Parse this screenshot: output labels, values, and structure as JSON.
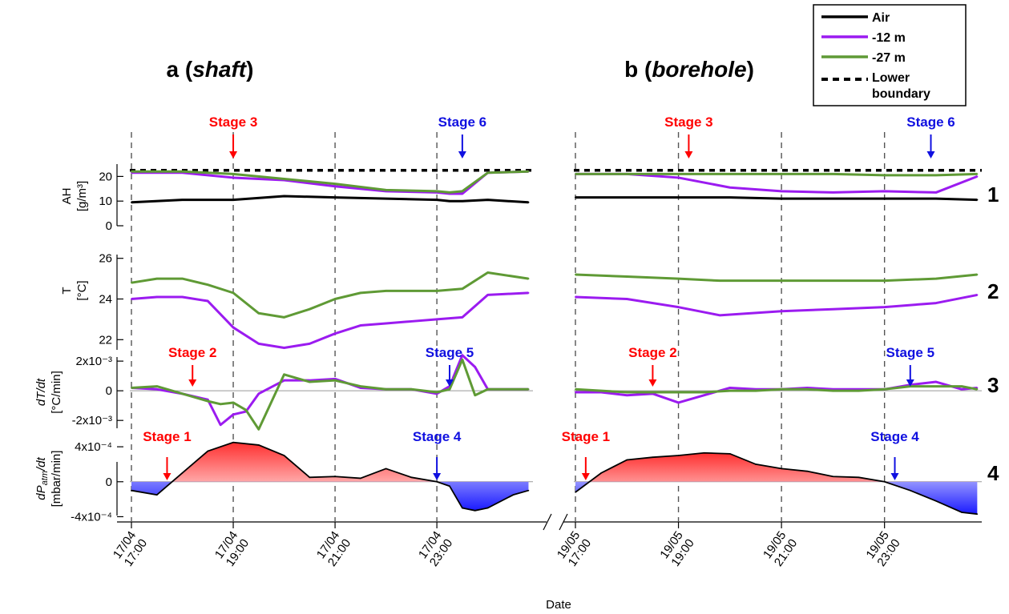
{
  "colors": {
    "air": "#000000",
    "m12": "#9b1bf0",
    "m27": "#5f9a35",
    "stage_red": "#ff0000",
    "stage_blue": "#1010e0",
    "area_positive": "#ff3030",
    "area_negative": "#1a1aff"
  },
  "legend": {
    "placement": "top-right",
    "entries": [
      {
        "label": "Air",
        "style": "solid",
        "color": "#000000"
      },
      {
        "label": "-12 m",
        "style": "solid",
        "color": "#9b1bf0"
      },
      {
        "label": "-27 m",
        "style": "solid",
        "color": "#5f9a35"
      },
      {
        "label": "Lower",
        "label2": "boundary",
        "style": "dashed",
        "color": "#000000"
      }
    ]
  },
  "panels": [
    {
      "title_prefix": "a (",
      "title_em": "shaft",
      "title_suffix": ")",
      "x_ticks": [
        {
          "date": "17/04",
          "time": "17:00"
        },
        {
          "date": "17/04",
          "time": "19:00"
        },
        {
          "date": "17/04",
          "time": "21:00"
        },
        {
          "date": "17/04",
          "time": "23:00"
        }
      ],
      "stages": [
        {
          "label": "Stage 3",
          "row": 0,
          "t": 2.0,
          "color": "red"
        },
        {
          "label": "Stage 6",
          "row": 0,
          "t": 6.5,
          "color": "blue"
        },
        {
          "label": "Stage 2",
          "row": 2,
          "t": 1.2,
          "color": "red"
        },
        {
          "label": "Stage 5",
          "row": 2,
          "t": 6.25,
          "color": "blue"
        },
        {
          "label": "Stage 1",
          "row": 3,
          "t": 0.7,
          "color": "red"
        },
        {
          "label": "Stage 4",
          "row": 3,
          "t": 6.0,
          "color": "blue"
        }
      ]
    },
    {
      "title_prefix": "b (",
      "title_em": "borehole",
      "title_suffix": ")",
      "x_ticks": [
        {
          "date": "19/05",
          "time": "17:00"
        },
        {
          "date": "19/05",
          "time": "19:00"
        },
        {
          "date": "19/05",
          "time": "21:00"
        },
        {
          "date": "19/05",
          "time": "23:00"
        }
      ],
      "stages": [
        {
          "label": "Stage 3",
          "row": 0,
          "t": 2.2,
          "color": "red"
        },
        {
          "label": "Stage 6",
          "row": 0,
          "t": 6.9,
          "color": "blue"
        },
        {
          "label": "Stage 2",
          "row": 2,
          "t": 1.5,
          "color": "red"
        },
        {
          "label": "Stage 5",
          "row": 2,
          "t": 6.5,
          "color": "blue"
        },
        {
          "label": "Stage 1",
          "row": 3,
          "t": 0.2,
          "color": "red"
        },
        {
          "label": "Stage 4",
          "row": 3,
          "t": 6.2,
          "color": "blue"
        }
      ]
    }
  ],
  "rows": [
    {
      "number": "1",
      "ylabel1": "AH",
      "ylabel2": "[g/m³]",
      "yticks": [
        {
          "v": 0,
          "label": "0"
        },
        {
          "v": 10,
          "label": "10"
        },
        {
          "v": 20,
          "label": "20"
        }
      ]
    },
    {
      "number": "2",
      "ylabel1": "T",
      "ylabel2": "[°C]",
      "yticks": [
        {
          "v": 22,
          "label": "22"
        },
        {
          "v": 24,
          "label": "24"
        },
        {
          "v": 26,
          "label": "26"
        }
      ]
    },
    {
      "number": "3",
      "ylabel1": "dT/dt",
      "ylabel2": "[°C/min]",
      "yticks": [
        {
          "v": -0.002,
          "label": "-2x10⁻³"
        },
        {
          "v": 0,
          "label": "0"
        },
        {
          "v": 0.002,
          "label": "2x10⁻³"
        }
      ]
    },
    {
      "number": "4",
      "ylabel1": "dPatm/dt",
      "ylabel2": "[mbar/min]",
      "yticks": [
        {
          "v": -0.0004,
          "label": "-4x10⁻⁴"
        },
        {
          "v": 0,
          "label": "0"
        },
        {
          "v": 0.0004,
          "label": "4x10⁻⁴"
        }
      ]
    }
  ],
  "xlabel": "Date",
  "chart_data": [
    {
      "type": "line",
      "panel": "a (shaft)",
      "row": "1",
      "ylabel": "AH [g/m³]",
      "ylim": [
        0,
        25
      ],
      "x_hours_from_17_00": [
        0,
        1,
        2,
        3,
        4,
        5,
        6,
        6.25,
        6.5,
        7,
        7.8
      ],
      "lower_boundary": 22.5,
      "series": [
        {
          "name": "Air",
          "values": [
            9.5,
            10.5,
            10.5,
            12,
            11.5,
            11,
            10.5,
            10,
            10,
            10.5,
            9.5
          ]
        },
        {
          "name": "-12 m",
          "values": [
            21.5,
            21.5,
            19.5,
            18.5,
            16,
            14,
            13.5,
            13,
            13,
            21.5,
            22
          ]
        },
        {
          "name": "-27 m",
          "values": [
            22,
            22,
            21,
            19,
            17,
            14.5,
            14,
            13.5,
            14,
            21.5,
            22
          ]
        }
      ]
    },
    {
      "type": "line",
      "panel": "a (shaft)",
      "row": "2",
      "ylabel": "T [°C]",
      "ylim": [
        21.5,
        26.5
      ],
      "x_hours_from_17_00": [
        0,
        0.5,
        1,
        1.5,
        2,
        2.5,
        3,
        3.5,
        4,
        4.5,
        5,
        5.5,
        6,
        6.5,
        7,
        7.8
      ],
      "series": [
        {
          "name": "-12 m",
          "values": [
            24,
            24.1,
            24.1,
            23.9,
            22.6,
            21.8,
            21.6,
            21.8,
            22.3,
            22.7,
            22.8,
            22.9,
            23,
            23.1,
            24.2,
            24.3
          ]
        },
        {
          "name": "-27 m",
          "values": [
            24.8,
            25,
            25,
            24.7,
            24.3,
            23.3,
            23.1,
            23.5,
            24,
            24.3,
            24.4,
            24.4,
            24.4,
            24.5,
            25.3,
            25
          ]
        }
      ]
    },
    {
      "type": "line",
      "panel": "a (shaft)",
      "row": "3",
      "ylabel": "dT/dt [°C/min]",
      "ylim": [
        -0.0028,
        0.0026
      ],
      "x_hours_from_17_00": [
        0,
        0.5,
        1,
        1.5,
        1.75,
        2,
        2.25,
        2.5,
        3,
        3.5,
        4,
        4.5,
        5,
        5.5,
        6,
        6.25,
        6.5,
        6.75,
        7,
        7.8
      ],
      "series": [
        {
          "name": "-12 m",
          "values": [
            0.0002,
            0.0001,
            -0.0002,
            -0.0006,
            -0.0023,
            -0.0016,
            -0.0014,
            -0.0002,
            0.0007,
            0.0007,
            0.0008,
            0.0002,
            0.0001,
            0.0001,
            -0.0002,
            0.0003,
            0.0024,
            0.0016,
            0.0001,
            0.0001
          ]
        },
        {
          "name": "-27 m",
          "values": [
            0.0002,
            0.0003,
            -0.0002,
            -0.0007,
            -0.0009,
            -0.0008,
            -0.0013,
            -0.0026,
            0.0011,
            0.0006,
            0.0007,
            0.0003,
            0.0001,
            0.0001,
            -0.0001,
            0.0001,
            0.0021,
            -0.0003,
            0.0001,
            0.0001
          ]
        }
      ]
    },
    {
      "type": "area",
      "panel": "a (shaft)",
      "row": "4",
      "ylabel": "dPatm/dt [mbar/min]",
      "ylim": [
        -0.00046,
        0.00052
      ],
      "x_hours_from_17_00": [
        0,
        0.5,
        1,
        1.5,
        2,
        2.5,
        3,
        3.5,
        4,
        4.5,
        5,
        5.5,
        6,
        6.25,
        6.5,
        6.75,
        7,
        7.5,
        7.8
      ],
      "series": [
        {
          "name": "",
          "values": [
            -0.0001,
            -0.00015,
            0.0001,
            0.00035,
            0.00045,
            0.00042,
            0.0003,
            5e-05,
            6e-05,
            4e-05,
            0.00015,
            5e-05,
            0.0,
            -5e-05,
            -0.0003,
            -0.00033,
            -0.0003,
            -0.00015,
            -0.0001
          ]
        }
      ]
    },
    {
      "type": "line",
      "panel": "b (borehole)",
      "row": "1",
      "ylabel": "AH [g/m³]",
      "ylim": [
        0,
        25
      ],
      "x_hours_from_17_00": [
        0,
        1,
        2,
        3,
        4,
        5,
        6,
        7,
        7.8
      ],
      "lower_boundary": 22.5,
      "series": [
        {
          "name": "Air",
          "values": [
            11.5,
            11.5,
            11.5,
            11.5,
            11,
            11,
            11,
            11,
            10.5
          ]
        },
        {
          "name": "-12 m",
          "values": [
            21,
            21,
            19.5,
            15.5,
            14,
            13.5,
            14,
            13.5,
            20
          ]
        },
        {
          "name": "-27 m",
          "values": [
            21,
            21,
            21,
            21,
            21,
            21,
            20.5,
            20.5,
            21
          ]
        }
      ]
    },
    {
      "type": "line",
      "panel": "b (borehole)",
      "row": "2",
      "ylabel": "T [°C]",
      "ylim": [
        21.5,
        26.5
      ],
      "x_hours_from_17_00": [
        0,
        1,
        2,
        2.8,
        4,
        5,
        6,
        7,
        7.8
      ],
      "series": [
        {
          "name": "-12 m",
          "values": [
            24.1,
            24,
            23.6,
            23.2,
            23.4,
            23.5,
            23.6,
            23.8,
            24.2
          ]
        },
        {
          "name": "-27 m",
          "values": [
            25.2,
            25.1,
            25,
            24.9,
            24.9,
            24.9,
            24.9,
            25,
            25.2
          ]
        }
      ]
    },
    {
      "type": "line",
      "panel": "b (borehole)",
      "row": "3",
      "ylabel": "dT/dt [°C/min]",
      "ylim": [
        -0.0028,
        0.0026
      ],
      "x_hours_from_17_00": [
        0,
        0.5,
        1,
        1.5,
        2,
        2.5,
        3,
        3.5,
        4,
        4.5,
        5,
        5.5,
        6,
        6.5,
        7,
        7.5,
        7.8
      ],
      "series": [
        {
          "name": "-12 m",
          "values": [
            -0.0001,
            -0.0001,
            -0.0003,
            -0.0002,
            -0.0008,
            -0.0003,
            0.0002,
            0.0001,
            0.0001,
            0.0002,
            0.0001,
            0.0001,
            0.0001,
            0.0004,
            0.0006,
            0.0001,
            0.0002
          ]
        },
        {
          "name": "-27 m",
          "values": [
            0.0001,
            0.0,
            -0.0001,
            -0.0001,
            -0.0001,
            -0.0001,
            0.0,
            0.0,
            0.0001,
            0.0001,
            0.0,
            0.0,
            0.0001,
            0.0003,
            0.0003,
            0.0003,
            0.0001
          ]
        }
      ]
    },
    {
      "type": "area",
      "panel": "b (borehole)",
      "row": "4",
      "ylabel": "dPatm/dt [mbar/min]",
      "ylim": [
        -0.00046,
        0.00052
      ],
      "x_hours_from_17_00": [
        0,
        0.5,
        1,
        1.5,
        2,
        2.5,
        3,
        3.5,
        4,
        4.5,
        5,
        5.5,
        6,
        6.5,
        7,
        7.5,
        7.8
      ],
      "series": [
        {
          "name": "",
          "values": [
            -0.00012,
            0.0001,
            0.00025,
            0.00028,
            0.0003,
            0.00033,
            0.00032,
            0.0002,
            0.00015,
            0.00012,
            6e-05,
            5e-05,
            0.0,
            -0.0001,
            -0.00022,
            -0.00035,
            -0.00037
          ]
        }
      ]
    }
  ]
}
